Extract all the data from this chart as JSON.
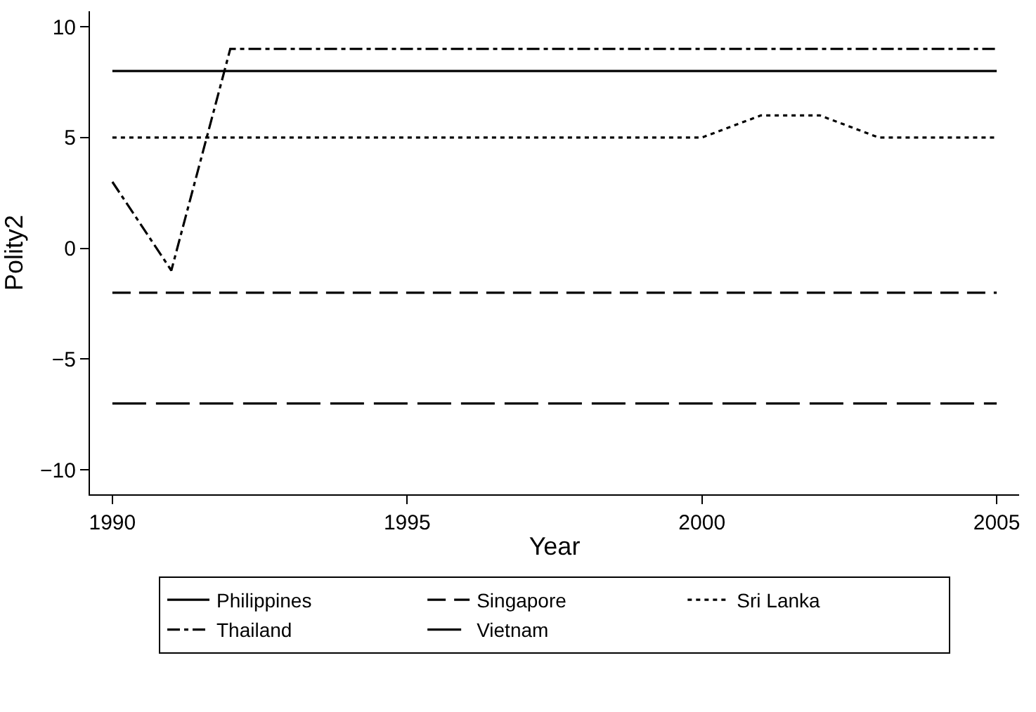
{
  "chart_data": {
    "type": "line",
    "xlabel": "Year",
    "ylabel": "Polity2",
    "x": [
      1990,
      1991,
      1992,
      1993,
      1994,
      1995,
      1996,
      1997,
      1998,
      1999,
      2000,
      2001,
      2002,
      2003,
      2004,
      2005
    ],
    "series": [
      {
        "name": "Philippines",
        "color": "#000000",
        "line_style": "solid",
        "values": [
          8,
          8,
          8,
          8,
          8,
          8,
          8,
          8,
          8,
          8,
          8,
          8,
          8,
          8,
          8,
          8
        ]
      },
      {
        "name": "Singapore",
        "color": "#000000",
        "line_style": "dashed",
        "values": [
          -2,
          -2,
          -2,
          -2,
          -2,
          -2,
          -2,
          -2,
          -2,
          -2,
          -2,
          -2,
          -2,
          -2,
          -2,
          -2
        ]
      },
      {
        "name": "Sri Lanka",
        "color": "#000000",
        "line_style": "dotted",
        "values": [
          5,
          5,
          5,
          5,
          5,
          5,
          5,
          5,
          5,
          5,
          5,
          6,
          6,
          5,
          5,
          5
        ]
      },
      {
        "name": "Thailand",
        "color": "#000000",
        "line_style": "dashdot",
        "values": [
          3,
          -1,
          9,
          9,
          9,
          9,
          9,
          9,
          9,
          9,
          9,
          9,
          9,
          9,
          9,
          9
        ]
      },
      {
        "name": "Vietnam",
        "color": "#000000",
        "line_style": "longdash",
        "values": [
          -7,
          -7,
          -7,
          -7,
          -7,
          -7,
          -7,
          -7,
          -7,
          -7,
          -7,
          -7,
          -7,
          -7,
          -7,
          -7
        ]
      }
    ],
    "xlim": [
      1989.62,
      2005.38
    ],
    "xticks": [
      1990,
      1995,
      2000,
      2005
    ],
    "ylim": [
      -11.1,
      10.7
    ],
    "yticks": [
      {
        "value": -10,
        "label": "−10"
      },
      {
        "value": -5,
        "label": "−5"
      },
      0,
      5,
      10
    ],
    "legend": "bottom",
    "marker": "none"
  }
}
